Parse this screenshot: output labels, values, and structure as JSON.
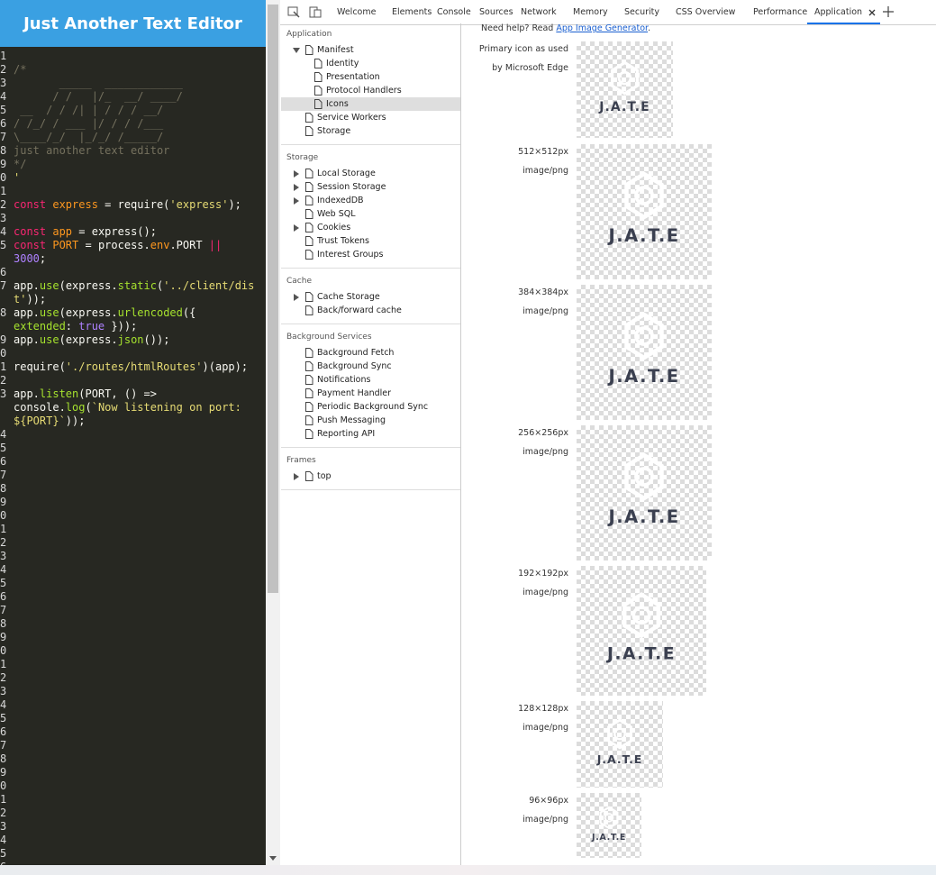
{
  "editor": {
    "title": "Just Another Text Editor",
    "lines": [
      {
        "n": 1
      },
      {
        "n": 2,
        "text": "/*"
      },
      {
        "n": 3,
        "text": "       _____  ____________"
      },
      {
        "n": 4,
        "text": "      / /   |/_  __/ ____/"
      },
      {
        "n": 5,
        "text": " __  / / /| | / / / __/"
      },
      {
        "n": 6,
        "text": "/ /_/ / ___ |/ / / /___"
      },
      {
        "n": 7,
        "text": "\\____/_/  |_/_/ /_____/"
      },
      {
        "n": 8,
        "text": "just another text editor"
      },
      {
        "n": 9,
        "text": "*/"
      },
      {
        "n": 0,
        "text": "'"
      },
      {
        "n": 1
      },
      {
        "n": 2,
        "text": "const express = require('express');"
      },
      {
        "n": 3
      },
      {
        "n": 4,
        "text": "const app = express();"
      },
      {
        "n": 5,
        "text": "const PORT = process.env.PORT || 3000;"
      },
      {
        "n": 6
      },
      {
        "n": 7,
        "text": "app.use(express.static('../client/dist'));"
      },
      {
        "n": 8,
        "text": "app.use(express.urlencoded({ extended: true }));"
      },
      {
        "n": 9,
        "text": "app.use(express.json());"
      },
      {
        "n": 0
      },
      {
        "n": 1,
        "text": "require('./routes/htmlRoutes')(app);"
      },
      {
        "n": 2
      },
      {
        "n": 3,
        "text": "app.listen(PORT, () => console.log(`Now listening on port: ${PORT}`));"
      },
      {
        "n": 4
      },
      {
        "n": 5
      },
      {
        "n": 6
      },
      {
        "n": 7
      },
      {
        "n": 8
      },
      {
        "n": 9
      },
      {
        "n": 0
      },
      {
        "n": 1
      },
      {
        "n": 2
      },
      {
        "n": 3
      },
      {
        "n": 4
      },
      {
        "n": 5
      },
      {
        "n": 6
      },
      {
        "n": 7
      },
      {
        "n": 8
      },
      {
        "n": 9
      },
      {
        "n": 0
      },
      {
        "n": 1
      },
      {
        "n": 2
      },
      {
        "n": 3
      },
      {
        "n": 4
      },
      {
        "n": 5
      },
      {
        "n": 6
      },
      {
        "n": 7
      },
      {
        "n": 8
      },
      {
        "n": 9
      },
      {
        "n": 0
      },
      {
        "n": 1
      },
      {
        "n": 2
      },
      {
        "n": 3
      },
      {
        "n": 4
      },
      {
        "n": 5
      },
      {
        "n": 6
      }
    ]
  },
  "devtools": {
    "tabs": [
      {
        "label": "Welcome"
      },
      {
        "label": "Elements"
      },
      {
        "label": "Console"
      },
      {
        "label": "Sources"
      },
      {
        "label": "Network"
      },
      {
        "label": "Memory"
      },
      {
        "label": "Security"
      },
      {
        "label": "CSS Overview"
      },
      {
        "label": "Performance"
      },
      {
        "label": "Application",
        "selected": true,
        "closable": true
      }
    ],
    "sidebar": [
      {
        "title": "Application",
        "items": [
          {
            "label": "Manifest",
            "expanded": true,
            "children": [
              {
                "label": "Identity"
              },
              {
                "label": "Presentation"
              },
              {
                "label": "Protocol Handlers"
              },
              {
                "label": "Icons",
                "selected": true
              }
            ]
          },
          {
            "label": "Service Workers"
          },
          {
            "label": "Storage"
          }
        ]
      },
      {
        "title": "Storage",
        "items": [
          {
            "label": "Local Storage",
            "expandable": true
          },
          {
            "label": "Session Storage",
            "expandable": true
          },
          {
            "label": "IndexedDB",
            "expandable": true
          },
          {
            "label": "Web SQL"
          },
          {
            "label": "Cookies",
            "expandable": true
          },
          {
            "label": "Trust Tokens"
          },
          {
            "label": "Interest Groups"
          }
        ]
      },
      {
        "title": "Cache",
        "items": [
          {
            "label": "Cache Storage",
            "expandable": true
          },
          {
            "label": "Back/forward cache"
          }
        ]
      },
      {
        "title": "Background Services",
        "items": [
          {
            "label": "Background Fetch"
          },
          {
            "label": "Background Sync"
          },
          {
            "label": "Notifications"
          },
          {
            "label": "Payment Handler"
          },
          {
            "label": "Periodic Background Sync"
          },
          {
            "label": "Push Messaging"
          },
          {
            "label": "Reporting API"
          }
        ]
      },
      {
        "title": "Frames",
        "items": [
          {
            "label": "top",
            "expandable": true
          }
        ]
      }
    ],
    "help": {
      "text": "Need help? Read ",
      "link": "App Image Generator",
      "end": "."
    },
    "icons": [
      {
        "label": "Primary icon as used by Microsoft Edge"
      },
      {
        "size": "512×512px",
        "type": "image/png"
      },
      {
        "size": "384×384px",
        "type": "image/png"
      },
      {
        "size": "256×256px",
        "type": "image/png"
      },
      {
        "size": "192×192px",
        "type": "image/png"
      },
      {
        "size": "128×128px",
        "type": "image/png"
      },
      {
        "size": "96×96px",
        "type": "image/png"
      }
    ],
    "logo_text": "J.A.T.E"
  }
}
